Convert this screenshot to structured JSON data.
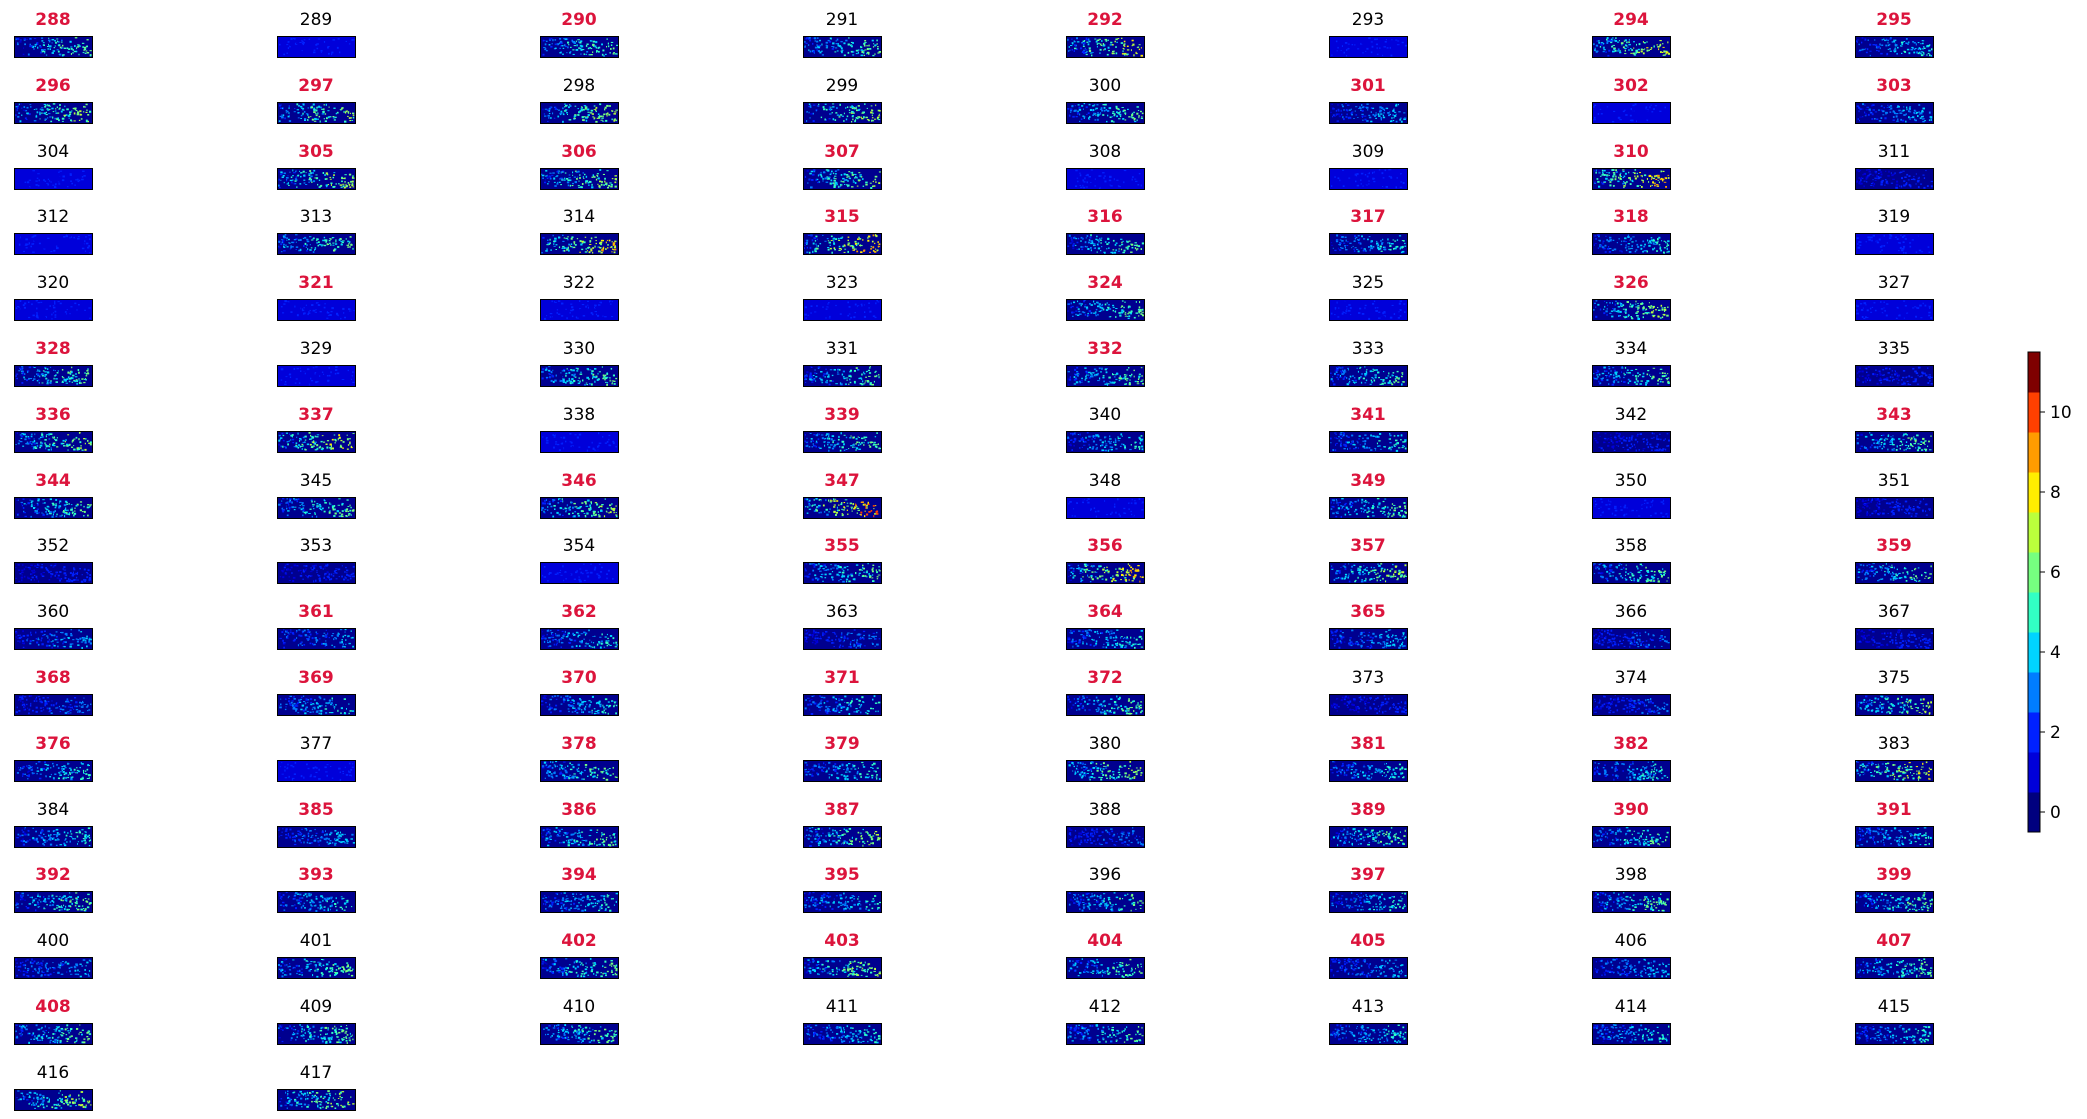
{
  "chart_data": {
    "type": "heatmap",
    "title": "",
    "xlabel": "",
    "ylabel": "",
    "layout": {
      "columns": 8,
      "rows": 17
    },
    "panels": [
      {
        "label": "288",
        "highlighted": true,
        "level": 6
      },
      {
        "label": "289",
        "highlighted": false,
        "level": 1
      },
      {
        "label": "290",
        "highlighted": true,
        "level": 6
      },
      {
        "label": "291",
        "highlighted": false,
        "level": 6
      },
      {
        "label": "292",
        "highlighted": true,
        "level": 8
      },
      {
        "label": "293",
        "highlighted": false,
        "level": 1
      },
      {
        "label": "294",
        "highlighted": true,
        "level": 8
      },
      {
        "label": "295",
        "highlighted": true,
        "level": 5
      },
      {
        "label": "296",
        "highlighted": true,
        "level": 7
      },
      {
        "label": "297",
        "highlighted": true,
        "level": 7
      },
      {
        "label": "298",
        "highlighted": false,
        "level": 7
      },
      {
        "label": "299",
        "highlighted": false,
        "level": 7
      },
      {
        "label": "300",
        "highlighted": false,
        "level": 6
      },
      {
        "label": "301",
        "highlighted": true,
        "level": 4
      },
      {
        "label": "302",
        "highlighted": true,
        "level": 1
      },
      {
        "label": "303",
        "highlighted": true,
        "level": 4
      },
      {
        "label": "304",
        "highlighted": false,
        "level": 1
      },
      {
        "label": "305",
        "highlighted": true,
        "level": 7
      },
      {
        "label": "306",
        "highlighted": true,
        "level": 7
      },
      {
        "label": "307",
        "highlighted": true,
        "level": 7
      },
      {
        "label": "308",
        "highlighted": false,
        "level": 1
      },
      {
        "label": "309",
        "highlighted": false,
        "level": 1
      },
      {
        "label": "310",
        "highlighted": true,
        "level": 9
      },
      {
        "label": "311",
        "highlighted": false,
        "level": 2
      },
      {
        "label": "312",
        "highlighted": false,
        "level": 1
      },
      {
        "label": "313",
        "highlighted": false,
        "level": 6
      },
      {
        "label": "314",
        "highlighted": false,
        "level": 9
      },
      {
        "label": "315",
        "highlighted": true,
        "level": 9
      },
      {
        "label": "316",
        "highlighted": true,
        "level": 6
      },
      {
        "label": "317",
        "highlighted": true,
        "level": 5
      },
      {
        "label": "318",
        "highlighted": true,
        "level": 5
      },
      {
        "label": "319",
        "highlighted": false,
        "level": 1
      },
      {
        "label": "320",
        "highlighted": false,
        "level": 1
      },
      {
        "label": "321",
        "highlighted": true,
        "level": 1
      },
      {
        "label": "322",
        "highlighted": false,
        "level": 1
      },
      {
        "label": "323",
        "highlighted": false,
        "level": 1
      },
      {
        "label": "324",
        "highlighted": true,
        "level": 6
      },
      {
        "label": "325",
        "highlighted": false,
        "level": 1
      },
      {
        "label": "326",
        "highlighted": true,
        "level": 7
      },
      {
        "label": "327",
        "highlighted": false,
        "level": 1
      },
      {
        "label": "328",
        "highlighted": true,
        "level": 6
      },
      {
        "label": "329",
        "highlighted": false,
        "level": 1
      },
      {
        "label": "330",
        "highlighted": false,
        "level": 6
      },
      {
        "label": "331",
        "highlighted": false,
        "level": 6
      },
      {
        "label": "332",
        "highlighted": true,
        "level": 6
      },
      {
        "label": "333",
        "highlighted": false,
        "level": 6
      },
      {
        "label": "334",
        "highlighted": false,
        "level": 6
      },
      {
        "label": "335",
        "highlighted": false,
        "level": 2
      },
      {
        "label": "336",
        "highlighted": true,
        "level": 7
      },
      {
        "label": "337",
        "highlighted": true,
        "level": 8
      },
      {
        "label": "338",
        "highlighted": false,
        "level": 1
      },
      {
        "label": "339",
        "highlighted": true,
        "level": 6
      },
      {
        "label": "340",
        "highlighted": false,
        "level": 5
      },
      {
        "label": "341",
        "highlighted": true,
        "level": 5
      },
      {
        "label": "342",
        "highlighted": false,
        "level": 2
      },
      {
        "label": "343",
        "highlighted": true,
        "level": 6
      },
      {
        "label": "344",
        "highlighted": true,
        "level": 6
      },
      {
        "label": "345",
        "highlighted": false,
        "level": 6
      },
      {
        "label": "346",
        "highlighted": true,
        "level": 7
      },
      {
        "label": "347",
        "highlighted": true,
        "level": 10
      },
      {
        "label": "348",
        "highlighted": false,
        "level": 1
      },
      {
        "label": "349",
        "highlighted": true,
        "level": 6
      },
      {
        "label": "350",
        "highlighted": false,
        "level": 1
      },
      {
        "label": "351",
        "highlighted": false,
        "level": 2
      },
      {
        "label": "352",
        "highlighted": false,
        "level": 2
      },
      {
        "label": "353",
        "highlighted": false,
        "level": 2
      },
      {
        "label": "354",
        "highlighted": false,
        "level": 1
      },
      {
        "label": "355",
        "highlighted": true,
        "level": 6
      },
      {
        "label": "356",
        "highlighted": true,
        "level": 9
      },
      {
        "label": "357",
        "highlighted": true,
        "level": 7
      },
      {
        "label": "358",
        "highlighted": false,
        "level": 6
      },
      {
        "label": "359",
        "highlighted": true,
        "level": 6
      },
      {
        "label": "360",
        "highlighted": false,
        "level": 4
      },
      {
        "label": "361",
        "highlighted": true,
        "level": 4
      },
      {
        "label": "362",
        "highlighted": true,
        "level": 5
      },
      {
        "label": "363",
        "highlighted": false,
        "level": 3
      },
      {
        "label": "364",
        "highlighted": true,
        "level": 5
      },
      {
        "label": "365",
        "highlighted": true,
        "level": 4
      },
      {
        "label": "366",
        "highlighted": false,
        "level": 3
      },
      {
        "label": "367",
        "highlighted": false,
        "level": 2
      },
      {
        "label": "368",
        "highlighted": true,
        "level": 3
      },
      {
        "label": "369",
        "highlighted": true,
        "level": 5
      },
      {
        "label": "370",
        "highlighted": true,
        "level": 5
      },
      {
        "label": "371",
        "highlighted": true,
        "level": 5
      },
      {
        "label": "372",
        "highlighted": true,
        "level": 6
      },
      {
        "label": "373",
        "highlighted": false,
        "level": 2
      },
      {
        "label": "374",
        "highlighted": false,
        "level": 3
      },
      {
        "label": "375",
        "highlighted": false,
        "level": 7
      },
      {
        "label": "376",
        "highlighted": true,
        "level": 5
      },
      {
        "label": "377",
        "highlighted": false,
        "level": 1
      },
      {
        "label": "378",
        "highlighted": true,
        "level": 6
      },
      {
        "label": "379",
        "highlighted": true,
        "level": 5
      },
      {
        "label": "380",
        "highlighted": false,
        "level": 7
      },
      {
        "label": "381",
        "highlighted": true,
        "level": 5
      },
      {
        "label": "382",
        "highlighted": true,
        "level": 5
      },
      {
        "label": "383",
        "highlighted": false,
        "level": 8
      },
      {
        "label": "384",
        "highlighted": false,
        "level": 5
      },
      {
        "label": "385",
        "highlighted": true,
        "level": 4
      },
      {
        "label": "386",
        "highlighted": true,
        "level": 6
      },
      {
        "label": "387",
        "highlighted": true,
        "level": 7
      },
      {
        "label": "388",
        "highlighted": false,
        "level": 3
      },
      {
        "label": "389",
        "highlighted": true,
        "level": 6
      },
      {
        "label": "390",
        "highlighted": true,
        "level": 6
      },
      {
        "label": "391",
        "highlighted": true,
        "level": 5
      },
      {
        "label": "392",
        "highlighted": true,
        "level": 6
      },
      {
        "label": "393",
        "highlighted": true,
        "level": 5
      },
      {
        "label": "394",
        "highlighted": true,
        "level": 5
      },
      {
        "label": "395",
        "highlighted": true,
        "level": 5
      },
      {
        "label": "396",
        "highlighted": false,
        "level": 6
      },
      {
        "label": "397",
        "highlighted": true,
        "level": 5
      },
      {
        "label": "398",
        "highlighted": false,
        "level": 6
      },
      {
        "label": "399",
        "highlighted": true,
        "level": 6
      },
      {
        "label": "400",
        "highlighted": false,
        "level": 4
      },
      {
        "label": "401",
        "highlighted": false,
        "level": 6
      },
      {
        "label": "402",
        "highlighted": true,
        "level": 6
      },
      {
        "label": "403",
        "highlighted": true,
        "level": 7
      },
      {
        "label": "404",
        "highlighted": true,
        "level": 6
      },
      {
        "label": "405",
        "highlighted": true,
        "level": 4
      },
      {
        "label": "406",
        "highlighted": false,
        "level": 4
      },
      {
        "label": "407",
        "highlighted": true,
        "level": 6
      },
      {
        "label": "408",
        "highlighted": true,
        "level": 6
      },
      {
        "label": "409",
        "highlighted": false,
        "level": 6
      },
      {
        "label": "410",
        "highlighted": false,
        "level": 6
      },
      {
        "label": "411",
        "highlighted": false,
        "level": 5
      },
      {
        "label": "412",
        "highlighted": false,
        "level": 6
      },
      {
        "label": "413",
        "highlighted": false,
        "level": 5
      },
      {
        "label": "414",
        "highlighted": false,
        "level": 5
      },
      {
        "label": "415",
        "highlighted": false,
        "level": 5
      },
      {
        "label": "416",
        "highlighted": false,
        "level": 7
      },
      {
        "label": "417",
        "highlighted": false,
        "level": 7
      }
    ],
    "colorbar": {
      "colormap": "jet",
      "range": [
        -0.5,
        11.5
      ],
      "ticks": [
        0,
        2,
        4,
        6,
        8,
        10
      ],
      "tick_labels": [
        "0",
        "2",
        "4",
        "6",
        "8",
        "10"
      ],
      "levels": 12
    },
    "colors": {
      "highlight_label": "#dc143c",
      "normal_label": "#000000",
      "background": "#00008f"
    }
  }
}
